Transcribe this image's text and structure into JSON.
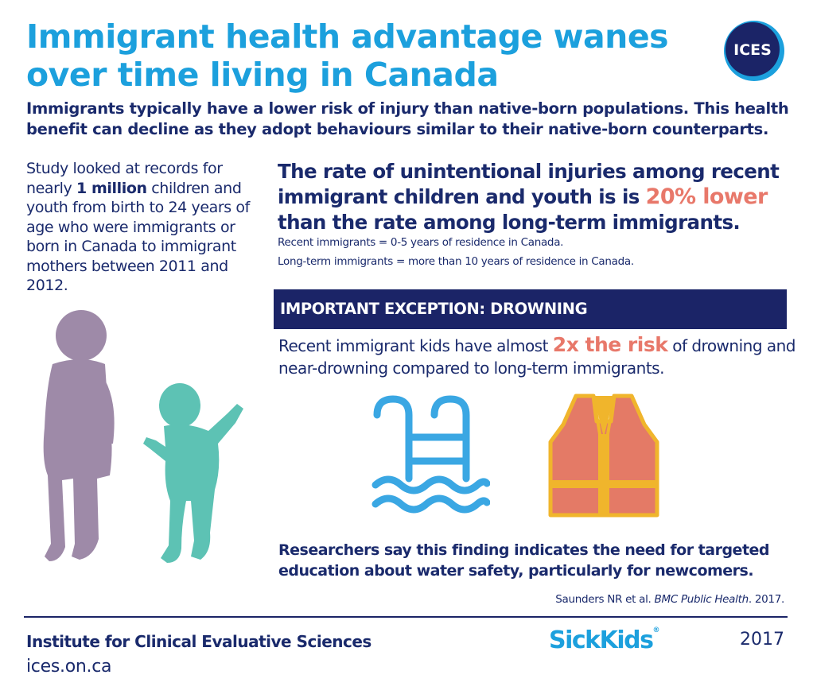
{
  "header": {
    "title": "Immigrant health advantage wanes over time living in Canada",
    "logo_text": "ICES",
    "subtitle": "Immigrants typically have a lower risk of injury than native-born populations. This health benefit can decline as they adopt behaviours similar to their native-born counterparts."
  },
  "study": {
    "text_before": "Study looked at records for nearly ",
    "bold": "1 million",
    "text_after": " children and youth from birth to 24 years of age who were immigrants or born in Canada to immigrant mothers between 2011 and 2012."
  },
  "rate": {
    "text_before": "The rate of unintentional injuries among recent immigrant children and youth is is ",
    "highlight": "20% lower",
    "text_after": " than the rate among long-term immigrants.",
    "definition_recent": "Recent immigrants = 0-5 years of residence in Canada.",
    "definition_longterm": "Long-term immigrants = more than 10 years of residence in Canada."
  },
  "exception": {
    "banner": "IMPORTANT EXCEPTION: DROWNING",
    "text_before": "Recent immigrant kids have almost ",
    "highlight": "2x the risk",
    "text_after": " of drowning and near-drowning compared to long-term immigrants."
  },
  "icons": {
    "pool": "pool-ladder-icon",
    "vest": "life-vest-icon",
    "silhouettes": [
      "child-silhouette-icon",
      "toddler-silhouette-icon"
    ]
  },
  "researchers": "Researchers say this finding indicates the need for targeted education about water safety, particularly for newcomers.",
  "citation": {
    "authors": "Saunders NR et al. ",
    "journal": "BMC Public Health",
    "year": ". 2017."
  },
  "footer": {
    "institute": "Institute for Clinical Evaluative Sciences",
    "url": "ices.on.ca",
    "partner": "SickKids",
    "partner_mark": "®",
    "year": "2017"
  },
  "colors": {
    "title_blue": "#1ca0dd",
    "navy": "#1a2a6c",
    "banner_navy": "#1b2467",
    "highlight_coral": "#e8786a",
    "silhouette_purple": "#9e8aa8",
    "silhouette_teal": "#5dc2b4",
    "vest_orange": "#e47a66",
    "vest_yellow": "#f0b52c"
  }
}
